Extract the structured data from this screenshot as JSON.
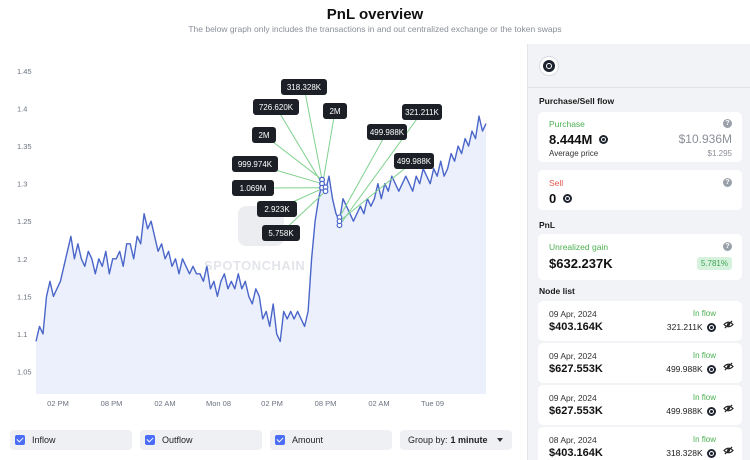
{
  "header": {
    "title": "PnL overview",
    "subtitle": "The below graph only includes the transactions in and out centralized exchange or the token swaps"
  },
  "watermark": "SPOTONCHAIN",
  "chart_data": {
    "type": "line",
    "x_ticks": [
      "02 PM",
      "08 PM",
      "02 AM",
      "Mon 08",
      "02 PM",
      "08 PM",
      "02 AM",
      "Tue 09"
    ],
    "y_ticks": [
      "1.05",
      "1.1",
      "1.15",
      "1.2",
      "1.25",
      "1.3",
      "1.35",
      "1.4",
      "1.45"
    ],
    "ylim": [
      1.02,
      1.47
    ],
    "grid": false,
    "line_color": "#4a66c9",
    "fill_color": "#e9edfb",
    "series": [
      {
        "values": [
          1.09,
          1.11,
          1.1,
          1.15,
          1.17,
          1.15,
          1.16,
          1.17,
          1.19,
          1.21,
          1.23,
          1.2,
          1.22,
          1.2,
          1.19,
          1.21,
          1.2,
          1.18,
          1.2,
          1.19,
          1.21,
          1.18,
          1.2,
          1.2,
          1.21,
          1.19,
          1.22,
          1.22,
          1.2,
          1.23,
          1.22,
          1.26,
          1.24,
          1.25,
          1.23,
          1.21,
          1.22,
          1.2,
          1.21,
          1.19,
          1.2,
          1.18,
          1.2,
          1.19,
          1.18,
          1.19,
          1.18,
          1.18,
          1.17,
          1.19,
          1.16,
          1.17,
          1.15,
          1.17,
          1.18,
          1.16,
          1.17,
          1.16,
          1.18,
          1.16,
          1.17,
          1.15,
          1.14,
          1.16,
          1.15,
          1.12,
          1.13,
          1.11,
          1.14,
          1.1,
          1.09,
          1.13,
          1.12,
          1.13,
          1.12,
          1.13,
          1.12,
          1.11,
          1.13,
          1.2,
          1.25,
          1.28,
          1.3,
          1.29,
          1.31,
          1.28,
          1.26,
          1.25,
          1.28,
          1.27,
          1.26,
          1.25,
          1.26,
          1.27,
          1.26,
          1.28,
          1.27,
          1.28,
          1.3,
          1.28,
          1.3,
          1.29,
          1.31,
          1.3,
          1.29,
          1.3,
          1.31,
          1.3,
          1.29,
          1.31,
          1.3,
          1.32,
          1.31,
          1.3,
          1.32,
          1.31,
          1.33,
          1.31,
          1.32,
          1.34,
          1.33,
          1.35,
          1.34,
          1.36,
          1.35,
          1.37,
          1.36,
          1.39,
          1.37,
          1.38
        ]
      }
    ],
    "annotations": [
      {
        "label": "318.328K",
        "point_index": 82
      },
      {
        "label": "726.620K",
        "point_index": 82
      },
      {
        "label": "2M",
        "point_index": 82
      },
      {
        "label": "2M",
        "point_index": 82
      },
      {
        "label": "999.974K",
        "point_index": 82
      },
      {
        "label": "1.069M",
        "point_index": 82
      },
      {
        "label": "2.923K",
        "point_index": 83
      },
      {
        "label": "5.758K",
        "point_index": 83
      },
      {
        "label": "321.211K",
        "point_index": 87
      },
      {
        "label": "499.988K",
        "point_index": 87
      },
      {
        "label": "499.988K",
        "point_index": 87
      }
    ]
  },
  "controls": {
    "inflow_label": "Inflow",
    "outflow_label": "Outflow",
    "amount_label": "Amount",
    "group_by_label": "Group by:",
    "group_by_value": "1 minute"
  },
  "panel": {
    "purchase_sell_title": "Purchase/Sell flow",
    "purchase_label": "Purchase",
    "purchase_amount": "8.444M",
    "purchase_usd": "$10.936M",
    "avg_price_label": "Average price",
    "avg_price_value": "$1.295",
    "sell_label": "Sell",
    "sell_amount": "0",
    "pnl_title": "PnL",
    "unrealized_label": "Unrealized gain",
    "unrealized_value": "$632.237K",
    "unrealized_pct": "5.781%",
    "node_list_title": "Node list",
    "nodes": [
      {
        "date": "09 Apr, 2024",
        "value": "$403.164K",
        "flow": "In flow",
        "amount": "321.211K"
      },
      {
        "date": "09 Apr, 2024",
        "value": "$627.553K",
        "flow": "In flow",
        "amount": "499.988K"
      },
      {
        "date": "09 Apr, 2024",
        "value": "$627.553K",
        "flow": "In flow",
        "amount": "499.988K"
      },
      {
        "date": "08 Apr, 2024",
        "value": "$403.164K",
        "flow": "In flow",
        "amount": "318.328K"
      }
    ]
  },
  "colors": {
    "accent": "#4a6cf7",
    "inflow_green": "#4caf50",
    "sell_red": "#e2574c",
    "annotation_line": "#7fd18d"
  }
}
